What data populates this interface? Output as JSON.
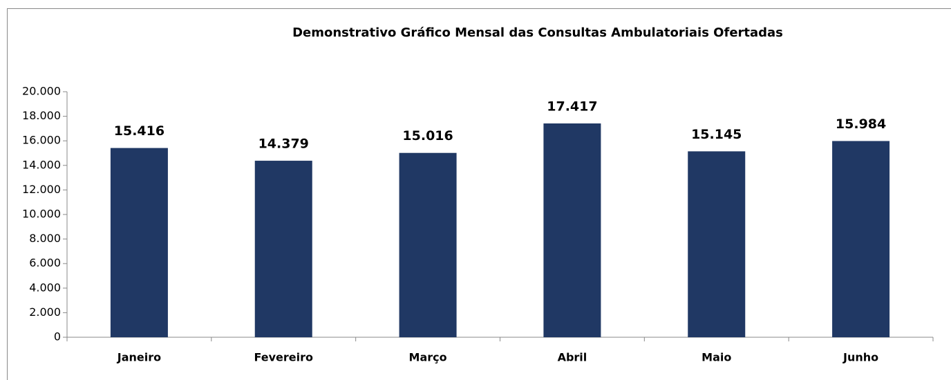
{
  "chart_data": {
    "type": "bar",
    "title": "Demonstrativo Gráfico Mensal das Consultas Ambulatoriais Ofertadas",
    "categories": [
      "Janeiro",
      "Fevereiro",
      "Março",
      "Abril",
      "Maio",
      "Junho"
    ],
    "values": [
      15416,
      14379,
      15016,
      17417,
      15145,
      15984
    ],
    "value_labels": [
      "15.416",
      "14.379",
      "15.016",
      "17.417",
      "15.145",
      "15.984"
    ],
    "color": "#203864",
    "ylim": [
      0,
      20000
    ],
    "yticks": [
      0,
      {
        "value": 2000,
        "label": "2.000"
      },
      {
        "value": 4000,
        "label": "4.000"
      },
      {
        "value": 6000,
        "label": "6.000"
      },
      {
        "value": 8000,
        "label": "8.000"
      },
      {
        "value": 10000,
        "label": "10.000"
      },
      {
        "value": 12000,
        "label": "12.000"
      },
      {
        "value": 14000,
        "label": "14.000"
      },
      {
        "value": 16000,
        "label": "16.000"
      },
      {
        "value": 18000,
        "label": "18.000"
      },
      {
        "value": 20000,
        "label": "20.000"
      }
    ],
    "grid": false
  }
}
